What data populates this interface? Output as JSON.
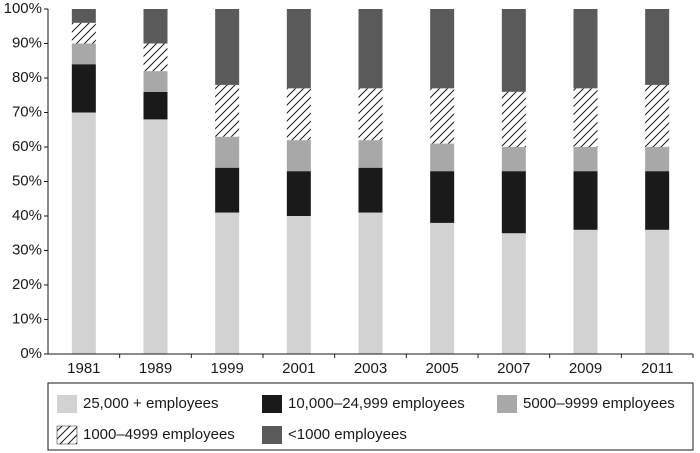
{
  "chart_data": {
    "type": "stacked_bar",
    "categories": [
      "1981",
      "1989",
      "1999",
      "2001",
      "2003",
      "2005",
      "2007",
      "2009",
      "2011"
    ],
    "series": [
      {
        "name": "25,000 + employees",
        "color": "#d2d2d2",
        "values": [
          70,
          68,
          41,
          40,
          41,
          38,
          35,
          36,
          36
        ]
      },
      {
        "name": "10,000–24,999 employees",
        "color": "#1a1a1a",
        "values": [
          14,
          8,
          13,
          13,
          13,
          15,
          18,
          17,
          17
        ]
      },
      {
        "name": "5000–9999 employees",
        "color": "#a8a8a8",
        "values": [
          6,
          6,
          9,
          9,
          8,
          8,
          7,
          7,
          7
        ]
      },
      {
        "name": "1000–4999 employees",
        "color": "#ffffff",
        "hatch": true,
        "values": [
          6,
          8,
          15,
          15,
          15,
          16,
          16,
          17,
          18
        ]
      },
      {
        "name": "<1000 employees",
        "color": "#5a5a5a",
        "values": [
          4,
          10,
          22,
          23,
          23,
          23,
          24,
          23,
          22
        ]
      }
    ],
    "ylim": [
      0,
      100
    ],
    "yticks": [
      {
        "value": 0,
        "label": "0%"
      },
      {
        "value": 10,
        "label": "10%"
      },
      {
        "value": 20,
        "label": "20%"
      },
      {
        "value": 30,
        "label": "30%"
      },
      {
        "value": 40,
        "label": "40%"
      },
      {
        "value": 50,
        "label": "50%"
      },
      {
        "value": 60,
        "label": "60%"
      },
      {
        "value": 70,
        "label": "70%"
      },
      {
        "value": 80,
        "label": "80%"
      },
      {
        "value": 90,
        "label": "90%"
      },
      {
        "value": 100,
        "label": "100%"
      }
    ],
    "legend": "bottom"
  }
}
